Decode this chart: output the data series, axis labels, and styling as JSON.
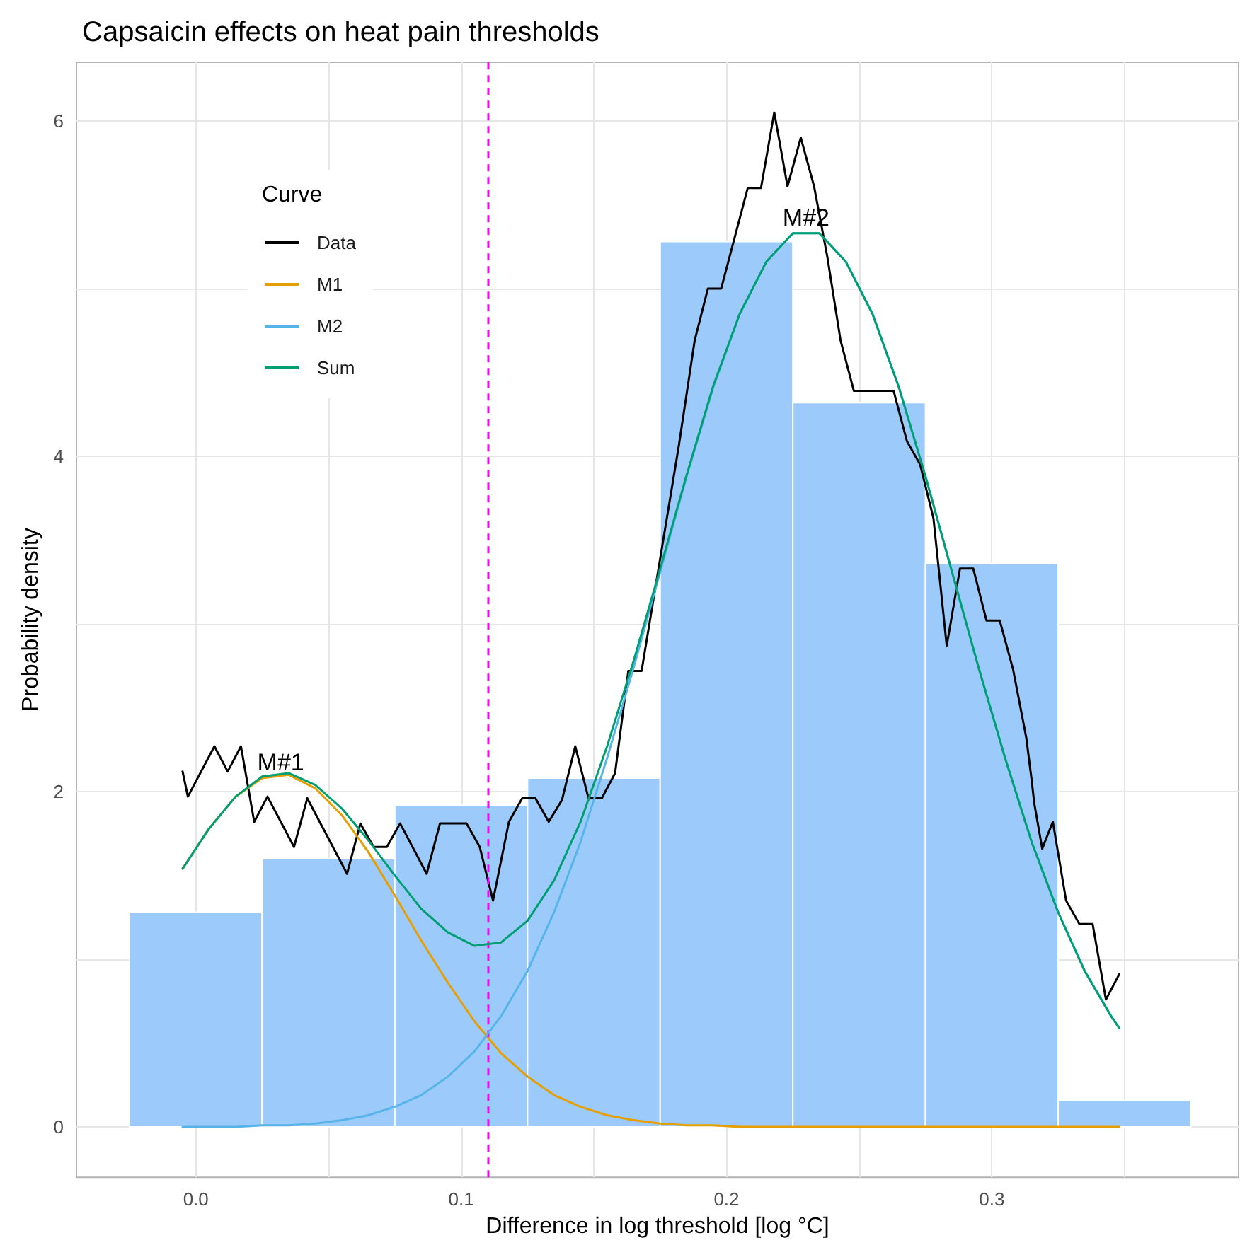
{
  "chart_data": {
    "type": "histogram",
    "title": "Capsaicin effects on heat pain thresholds",
    "xlabel": "Difference in log threshold [log °C]",
    "ylabel": "Probability density",
    "legend_title": "Curve",
    "bins": [
      -0.025,
      0.025,
      0.075,
      0.125,
      0.175,
      0.225,
      0.275,
      0.325,
      0.375
    ],
    "values": [
      1.28,
      1.6,
      1.92,
      2.08,
      5.28,
      4.32,
      3.36,
      0.16
    ],
    "color": "#9ccbfb",
    "series": [
      {
        "name": "Data",
        "type": "line",
        "color": "#000000",
        "x": [
          -0.005,
          -0.003,
          0.007,
          0.012,
          0.017,
          0.022,
          0.027,
          0.037,
          0.042,
          0.057,
          0.062,
          0.067,
          0.072,
          0.077,
          0.087,
          0.092,
          0.102,
          0.107,
          0.112,
          0.118,
          0.123,
          0.128,
          0.133,
          0.138,
          0.143,
          0.148,
          0.153,
          0.158,
          0.163,
          0.168,
          0.182,
          0.188,
          0.193,
          0.198,
          0.208,
          0.213,
          0.218,
          0.223,
          0.228,
          0.233,
          0.238,
          0.243,
          0.248,
          0.263,
          0.268,
          0.273,
          0.278,
          0.283,
          0.288,
          0.293,
          0.298,
          0.303,
          0.308,
          0.313,
          0.315,
          0.316,
          0.319,
          0.323,
          0.328,
          0.333,
          0.338,
          0.343,
          0.348
        ],
        "values": [
          2.12,
          1.97,
          2.27,
          2.12,
          2.27,
          1.82,
          1.97,
          1.67,
          1.96,
          1.51,
          1.81,
          1.67,
          1.67,
          1.81,
          1.51,
          1.81,
          1.81,
          1.67,
          1.35,
          1.82,
          1.96,
          1.96,
          1.82,
          1.95,
          2.27,
          1.96,
          1.96,
          2.11,
          2.72,
          2.72,
          4.06,
          4.69,
          5,
          5,
          5.6,
          5.6,
          6.05,
          5.61,
          5.9,
          5.61,
          5.19,
          4.69,
          4.39,
          4.39,
          4.09,
          3.95,
          3.63,
          2.87,
          3.33,
          3.33,
          3.02,
          3.02,
          2.73,
          2.32,
          2.07,
          1.93,
          1.66,
          1.82,
          1.35,
          1.21,
          1.21,
          0.76,
          0.91
        ]
      },
      {
        "name": "M1",
        "type": "line",
        "color": "#e69f00",
        "x": [
          -0.005,
          0.005,
          0.015,
          0.025,
          0.035,
          0.045,
          0.055,
          0.065,
          0.075,
          0.085,
          0.095,
          0.105,
          0.115,
          0.125,
          0.135,
          0.145,
          0.155,
          0.165,
          0.175,
          0.185,
          0.195,
          0.205,
          0.215,
          0.225,
          0.235,
          0.245,
          0.255,
          0.265,
          0.275,
          0.285,
          0.295,
          0.305,
          0.315,
          0.325,
          0.335,
          0.345,
          0.348
        ],
        "values": [
          1.54,
          1.78,
          1.97,
          2.08,
          2.1,
          2.02,
          1.86,
          1.64,
          1.38,
          1.11,
          0.86,
          0.63,
          0.44,
          0.3,
          0.19,
          0.12,
          0.07,
          0.04,
          0.02,
          0.01,
          0.01,
          0,
          0,
          0,
          0,
          0,
          0,
          0,
          0,
          0,
          0,
          0,
          0,
          0,
          0,
          0,
          0
        ]
      },
      {
        "name": "M2",
        "type": "line",
        "color": "#56b4e9",
        "x": [
          -0.005,
          0.005,
          0.015,
          0.025,
          0.035,
          0.045,
          0.055,
          0.065,
          0.075,
          0.085,
          0.095,
          0.105,
          0.115,
          0.125,
          0.135,
          0.145,
          0.155,
          0.165,
          0.175,
          0.185,
          0.195,
          0.205,
          0.215,
          0.225,
          0.235,
          0.245,
          0.255,
          0.265,
          0.275,
          0.285,
          0.295,
          0.305,
          0.315,
          0.325,
          0.335,
          0.345,
          0.348
        ],
        "values": [
          0,
          0,
          0,
          0.01,
          0.01,
          0.02,
          0.04,
          0.07,
          0.12,
          0.19,
          0.3,
          0.45,
          0.66,
          0.93,
          1.28,
          1.7,
          2.2,
          2.74,
          3.31,
          3.88,
          4.41,
          4.85,
          5.16,
          5.33,
          5.33,
          5.16,
          4.85,
          4.41,
          3.88,
          3.31,
          2.74,
          2.2,
          1.7,
          1.28,
          0.93,
          0.66,
          0.59
        ]
      },
      {
        "name": "Sum",
        "type": "line",
        "color": "#009e73",
        "x": [
          -0.005,
          0.005,
          0.015,
          0.025,
          0.035,
          0.045,
          0.055,
          0.065,
          0.075,
          0.085,
          0.095,
          0.105,
          0.115,
          0.125,
          0.135,
          0.145,
          0.155,
          0.165,
          0.175,
          0.185,
          0.195,
          0.205,
          0.215,
          0.225,
          0.235,
          0.245,
          0.255,
          0.265,
          0.275,
          0.285,
          0.295,
          0.305,
          0.315,
          0.325,
          0.335,
          0.345,
          0.348
        ],
        "values": [
          1.54,
          1.78,
          1.97,
          2.09,
          2.11,
          2.04,
          1.9,
          1.71,
          1.5,
          1.3,
          1.16,
          1.08,
          1.1,
          1.23,
          1.47,
          1.82,
          2.27,
          2.78,
          3.33,
          3.89,
          4.42,
          4.85,
          5.16,
          5.33,
          5.33,
          5.16,
          4.85,
          4.41,
          3.88,
          3.31,
          2.74,
          2.2,
          1.7,
          1.28,
          0.93,
          0.66,
          0.59
        ]
      }
    ],
    "annotations": [
      {
        "text": "M#1",
        "x": 0.032,
        "y": 2.1
      },
      {
        "text": "M#2",
        "x": 0.23,
        "y": 5.35
      }
    ],
    "ref_lines": [
      {
        "axis": "x",
        "value": 0.109,
        "color": "#ff00ff",
        "line_style": "dashed"
      }
    ],
    "xlim": [
      -0.045,
      0.393
    ],
    "ylim": [
      -0.3,
      6.35
    ],
    "xticks": [
      {
        "value": 0,
        "label": "0.0"
      },
      {
        "value": 0.05,
        "label": null
      },
      0.1,
      {
        "value": 0.15,
        "label": null
      },
      0.2,
      {
        "value": 0.25,
        "label": null
      },
      0.3,
      {
        "value": 0.35,
        "label": null
      }
    ],
    "yticks": [
      0,
      {
        "value": 1,
        "label": null
      },
      2,
      {
        "value": 3,
        "label": null
      },
      4,
      {
        "value": 5,
        "label": null
      },
      6
    ],
    "grid": true,
    "legend": "top left"
  }
}
